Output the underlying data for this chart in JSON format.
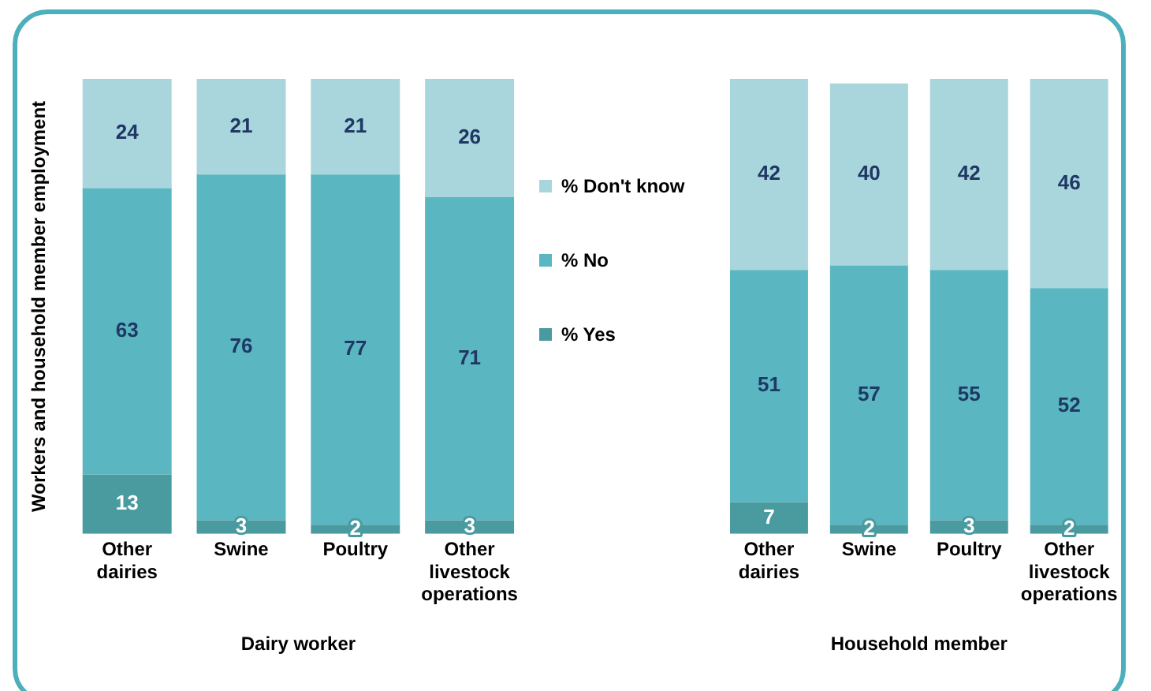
{
  "chart_data": [
    {
      "type": "bar",
      "stacked": true,
      "categories": [
        "Other dairies",
        "Swine",
        "Poultry",
        "Other livestock operations"
      ],
      "xlabel": "Dairy worker",
      "ylabel": "Workers and household member employment",
      "ylim": [
        0,
        100
      ],
      "tick_labels": "x",
      "data_labels": true,
      "legend": "right",
      "series": [
        {
          "name": "% Yes",
          "color": "#4a9ba0",
          "values": [
            13,
            3,
            2,
            3
          ]
        },
        {
          "name": "% No",
          "color": "#5ab6c1",
          "values": [
            63,
            76,
            77,
            71
          ]
        },
        {
          "name": "% Don't know",
          "color": "#a9d5dc",
          "values": [
            24,
            21,
            21,
            26
          ]
        }
      ]
    },
    {
      "type": "bar",
      "stacked": true,
      "categories": [
        "Other dairies",
        "Swine",
        "Poultry",
        "Other livestock operations"
      ],
      "xlabel": "Household member",
      "ylim": [
        0,
        100
      ],
      "tick_labels": "x",
      "data_labels": true,
      "series": [
        {
          "color": "#4a9ba0",
          "values": [
            7,
            2,
            3,
            2
          ]
        },
        {
          "color": "#5ab6c1",
          "values": [
            51,
            57,
            55,
            52
          ]
        },
        {
          "color": "#a9d5dc",
          "values": [
            42,
            40,
            42,
            46
          ]
        }
      ]
    }
  ]
}
